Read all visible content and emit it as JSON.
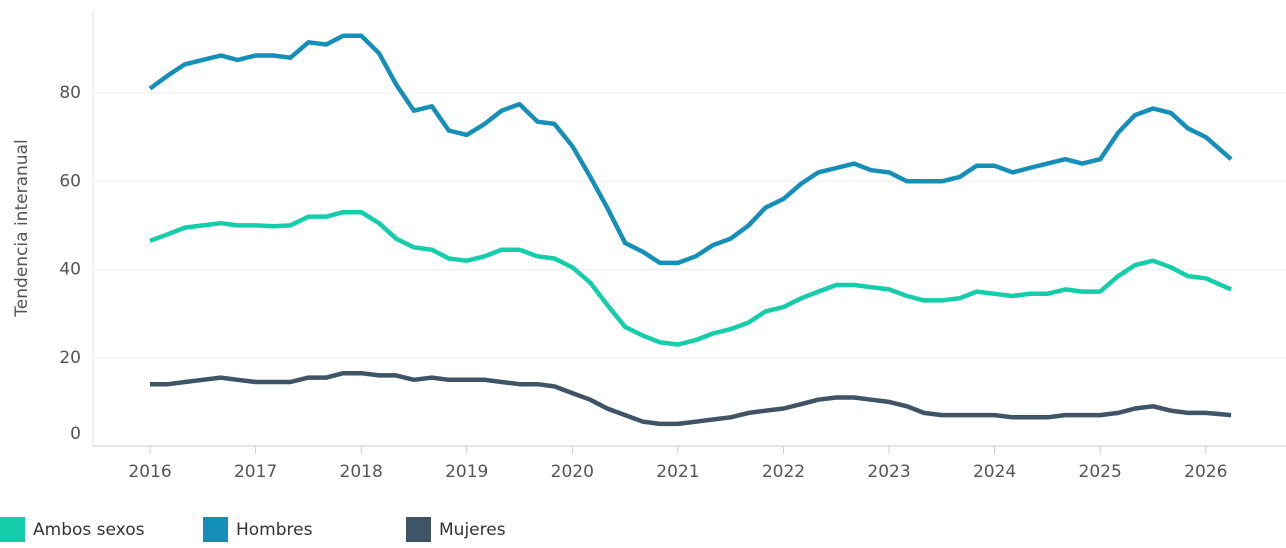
{
  "chart_data": {
    "type": "line",
    "y_label": "Tendencia interanual",
    "x": [
      2016,
      2016.17,
      2016.33,
      2016.5,
      2016.67,
      2016.83,
      2017,
      2017.17,
      2017.33,
      2017.5,
      2017.67,
      2017.83,
      2018,
      2018.17,
      2018.33,
      2018.5,
      2018.67,
      2018.83,
      2019,
      2019.17,
      2019.33,
      2019.5,
      2019.67,
      2019.83,
      2020,
      2020.17,
      2020.33,
      2020.5,
      2020.67,
      2020.83,
      2021,
      2021.17,
      2021.33,
      2021.5,
      2021.67,
      2021.83,
      2022,
      2022.17,
      2022.33,
      2022.5,
      2022.67,
      2022.83,
      2023,
      2023.17,
      2023.33,
      2023.5,
      2023.67,
      2023.83,
      2024,
      2024.17,
      2024.33,
      2024.5,
      2024.67,
      2024.83,
      2025,
      2025.17,
      2025.33,
      2025.5,
      2025.67,
      2025.83,
      2026,
      2026.24
    ],
    "series": [
      {
        "name": "Ambos sexos",
        "color": "#14cdaa",
        "values": [
          46.5,
          48,
          49.5,
          50,
          50.5,
          50,
          50,
          49.8,
          50,
          52,
          52,
          53,
          53,
          50.5,
          47,
          45,
          44.5,
          42.5,
          42,
          43,
          44.5,
          44.5,
          43,
          42.5,
          40.5,
          37,
          32,
          27,
          25,
          23.5,
          23,
          24,
          25.5,
          26.5,
          28,
          30.5,
          31.5,
          33.5,
          35,
          36.5,
          36.5,
          36,
          35.5,
          34,
          33,
          33,
          33.5,
          35,
          34.5,
          34,
          34.5,
          34.5,
          35.5,
          35,
          35,
          38.5,
          41,
          42,
          40.5,
          38.5,
          38,
          35.5
        ]
      },
      {
        "name": "Hombres",
        "color": "#168fb8",
        "values": [
          81,
          84,
          86.5,
          87.5,
          88.5,
          87.5,
          88.5,
          88.5,
          88,
          91.5,
          91,
          93,
          93,
          89,
          82,
          76,
          77,
          71.5,
          70.5,
          73,
          76,
          77.5,
          73.5,
          73,
          68,
          61,
          54,
          46,
          44,
          41.5,
          41.5,
          43,
          45.5,
          47,
          50,
          54,
          56,
          59.5,
          62,
          63,
          64,
          62.5,
          62,
          60,
          60,
          60,
          61,
          63.5,
          63.5,
          62,
          63,
          64,
          65,
          64,
          65,
          71,
          75,
          76.5,
          75.5,
          72,
          70,
          65
        ]
      },
      {
        "name": "Mujeres",
        "color": "#3f5466",
        "values": [
          14,
          14,
          14.5,
          15,
          15.5,
          15,
          14.5,
          14.5,
          14.5,
          15.5,
          15.5,
          16.5,
          16.5,
          16,
          16,
          15,
          15.5,
          15,
          15,
          15,
          14.5,
          14,
          14,
          13.5,
          12,
          10.5,
          8.5,
          7,
          5.5,
          5,
          5,
          5.5,
          6,
          6.5,
          7.5,
          8,
          8.5,
          9.5,
          10.5,
          11,
          11,
          10.5,
          10,
          9,
          7.5,
          7,
          7,
          7,
          7,
          6.5,
          6.5,
          6.5,
          7,
          7,
          7,
          7.5,
          8.5,
          9,
          8,
          7.5,
          7.5,
          7
        ]
      }
    ],
    "xlim": [
      2015.46,
      2026.76
    ],
    "xticks": [
      2016,
      2017,
      2018,
      2019,
      2020,
      2021,
      2022,
      2023,
      2024,
      2025,
      2026
    ],
    "ylim": [
      0,
      98
    ],
    "yticks": [
      0,
      20,
      40,
      60,
      80
    ],
    "grid": true
  }
}
